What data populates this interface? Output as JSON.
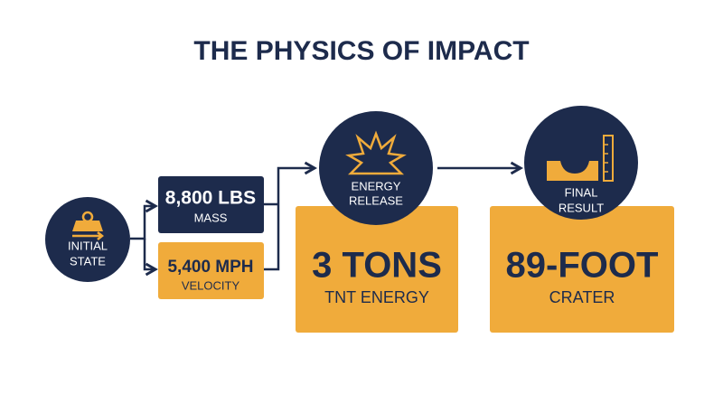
{
  "title": "THE PHYSICS OF IMPACT",
  "initial_state": {
    "label_lines": [
      "INITIAL",
      "STATE"
    ]
  },
  "inputs": [
    {
      "value": "8,800 LBS",
      "label": "MASS"
    },
    {
      "value": "5,400 MPH",
      "label": "VELOCITY"
    }
  ],
  "energy": {
    "label_lines": [
      "ENERGY",
      "RELEASE"
    ],
    "value": "3 TONS",
    "label": "TNT ENERGY"
  },
  "result": {
    "label_lines": [
      "FINAL",
      "RESULT"
    ],
    "value": "89-FOOT",
    "label": "CRATER"
  }
}
